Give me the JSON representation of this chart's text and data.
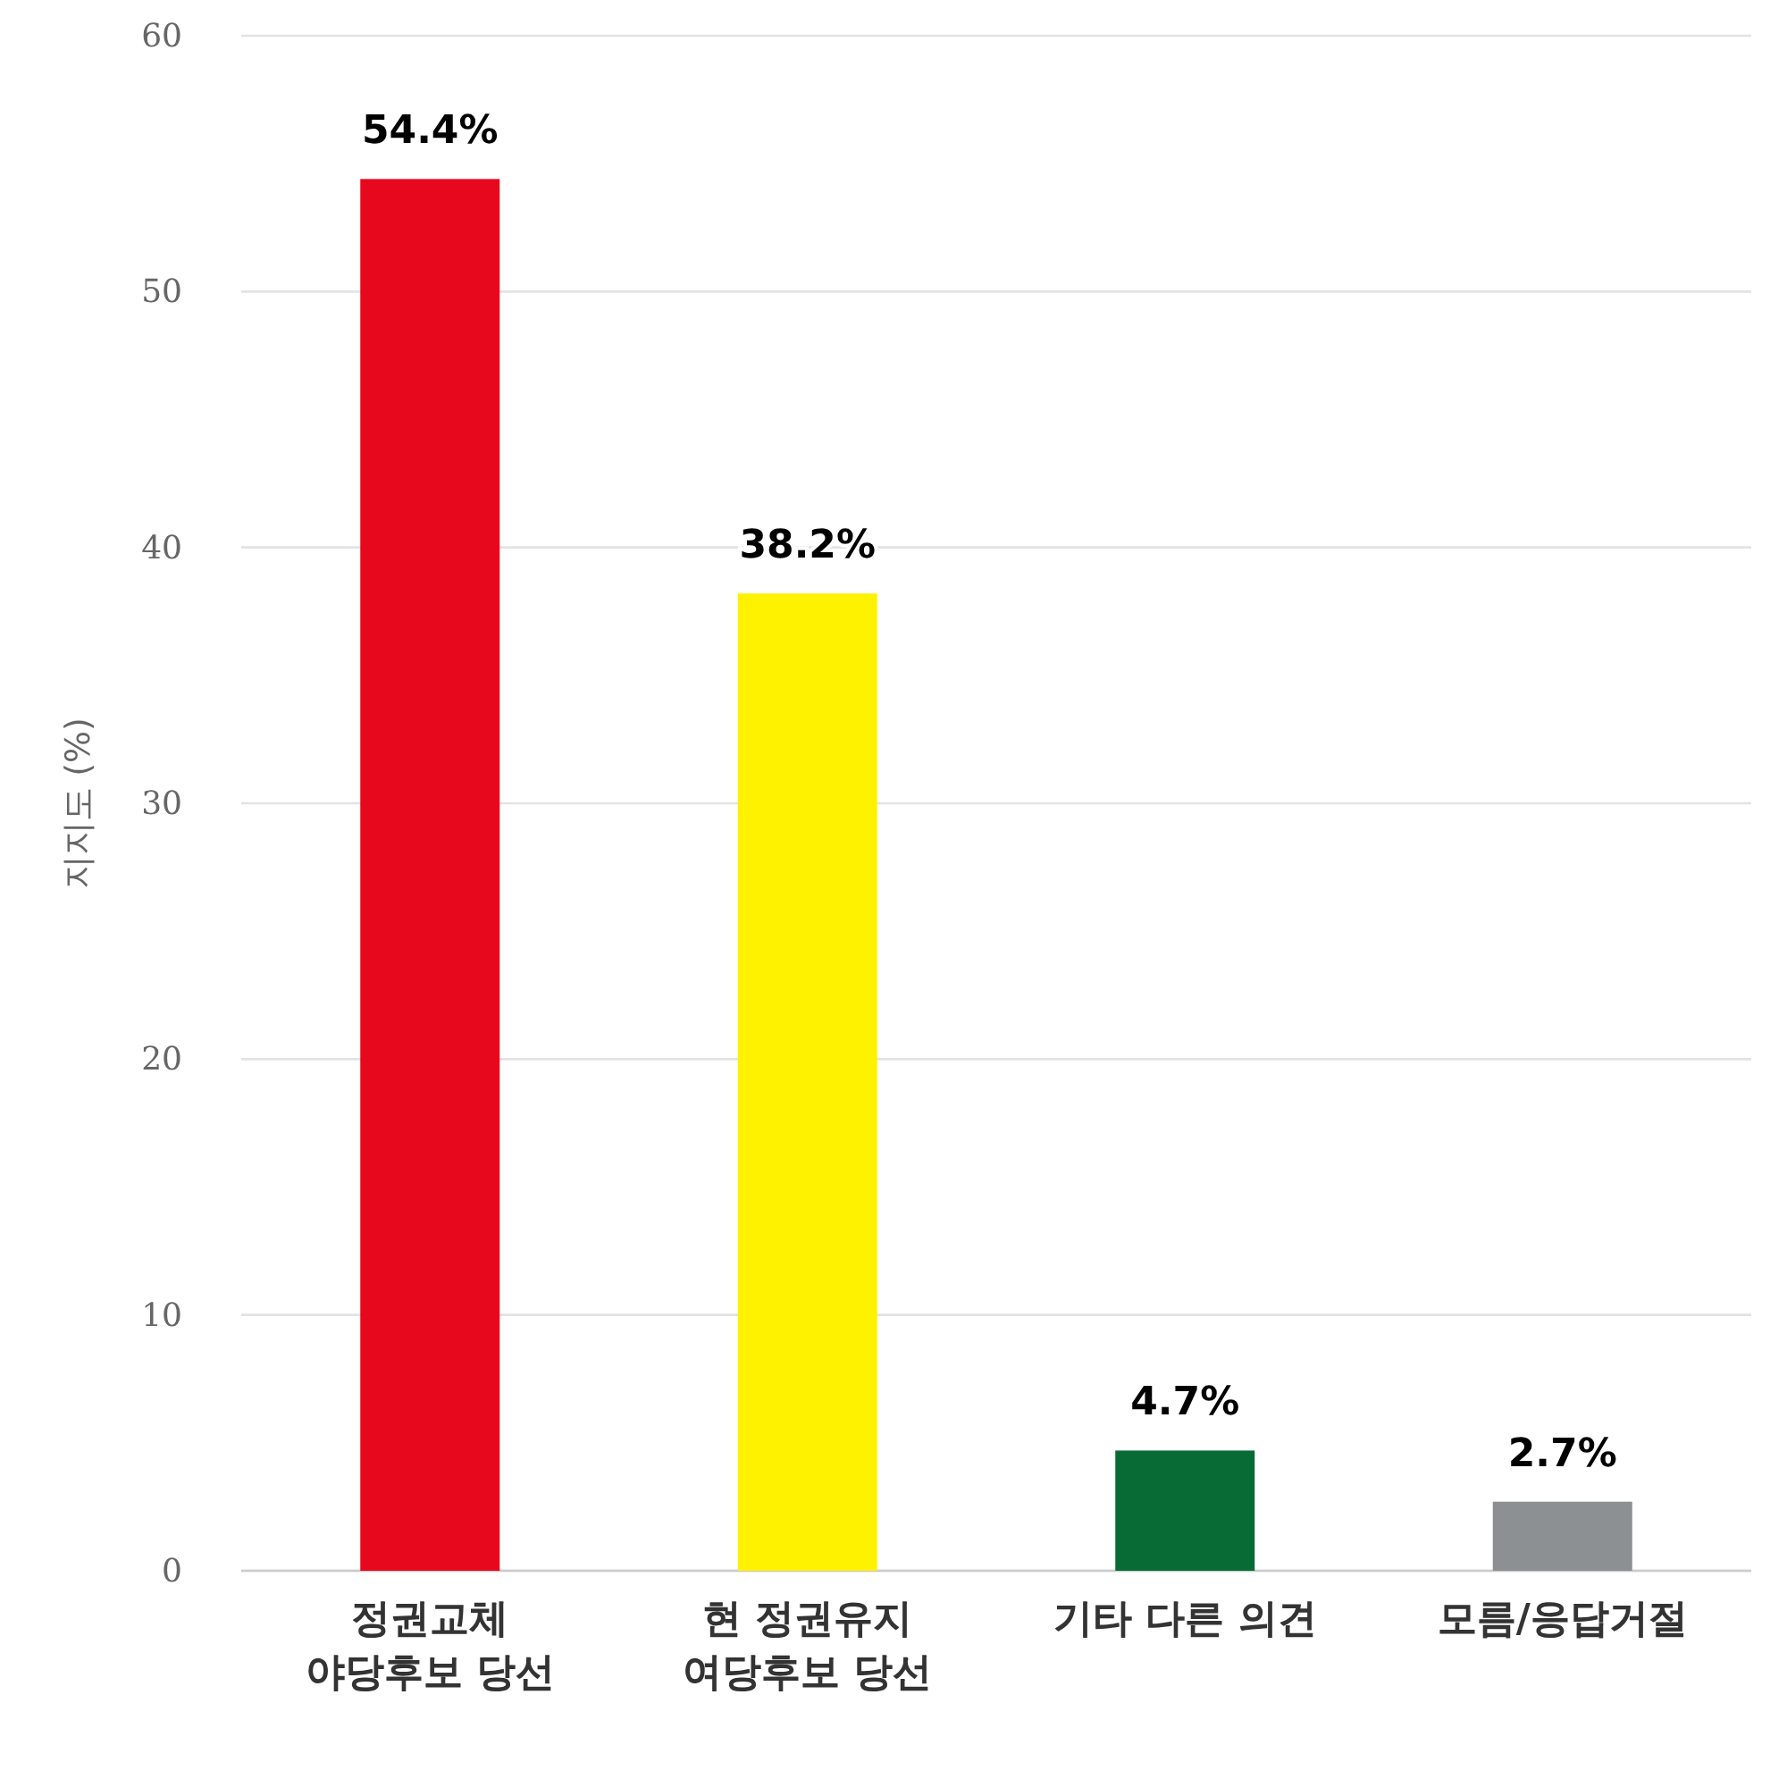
{
  "chart_data": {
    "type": "bar",
    "ylabel": "지지도 (%)",
    "categories": [
      "정권교체\n야당후보 당선",
      "현 정권유지\n여당후보 당선",
      "기타 다른 의견",
      "모름/응답거절"
    ],
    "values": [
      54.4,
      38.2,
      4.7,
      2.7
    ],
    "colors": [
      "#e8081e",
      "#fff200",
      "#086b35",
      "#8c9093"
    ],
    "value_labels": [
      "54.4%",
      "38.2%",
      "4.7%",
      "2.7%"
    ],
    "ylim": [
      0,
      60
    ],
    "yticks": [
      0,
      10,
      20,
      30,
      40,
      50,
      60
    ],
    "grid": "y"
  }
}
